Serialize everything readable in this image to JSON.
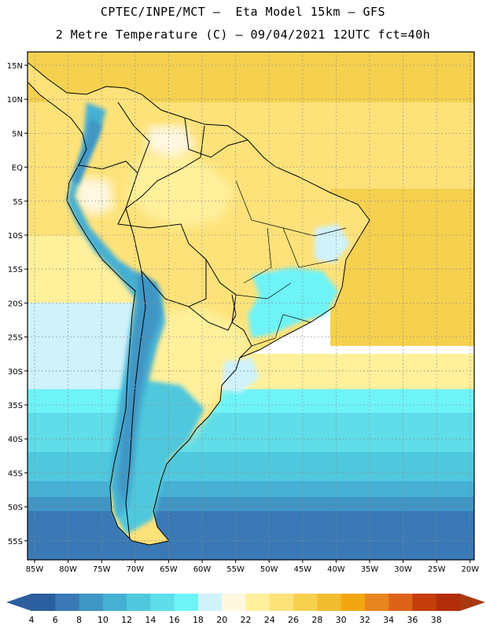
{
  "title_line1": "CPTEC/INPE/MCT –  Eta Model 15km – GFS",
  "title_line2": "2 Metre Temperature (C) – 09/04/2021 12UTC fct=40h",
  "lat_ticks": [
    "15N",
    "10N",
    "5N",
    "EQ",
    "5S",
    "10S",
    "15S",
    "20S",
    "25S",
    "30S",
    "35S",
    "40S",
    "45S",
    "50S",
    "55S"
  ],
  "lon_ticks": [
    "85W",
    "80W",
    "75W",
    "70W",
    "65W",
    "60W",
    "55W",
    "50W",
    "45W",
    "40W",
    "35W",
    "30W",
    "25W",
    "20W"
  ],
  "colorbar": {
    "labels": [
      "4",
      "6",
      "8",
      "10",
      "12",
      "14",
      "16",
      "18",
      "20",
      "22",
      "24",
      "26",
      "28",
      "30",
      "32",
      "34",
      "36",
      "38"
    ],
    "colors": [
      "#2c5f9f",
      "#3a79b6",
      "#3f95c4",
      "#45b0d3",
      "#4fc8dd",
      "#5fdde8",
      "#6ef3f7",
      "#cff2fb",
      "#fff7e0",
      "#fff09b",
      "#fde27a",
      "#f6d14f",
      "#f0bd31",
      "#f2a712",
      "#e88520",
      "#dc6318",
      "#c43e0b",
      "#b22e0a"
    ],
    "left_arrow_color": "#2c5f9f",
    "right_arrow_color": "#a83a12"
  },
  "map_colors": {
    "ocean_tropical": "#f6d14f",
    "ocean_warm": "#fde27a",
    "ocean_mild": "#fff09b",
    "ocean_cool": "#cff2fb",
    "ocean_c16": "#6ef3f7",
    "ocean_c14": "#5fdde8",
    "ocean_c12": "#4fc8dd",
    "ocean_c10": "#45b0d3",
    "ocean_c8": "#3f95c4",
    "ocean_c6": "#3a79b6",
    "land_warm": "#fde27a",
    "land_mild": "#fff09b",
    "land_cool": "#fff7e0",
    "andes_high": "#3f95c4",
    "andes_mid": "#45b0d3",
    "border": "#000000",
    "grid": "#8a8a8a"
  }
}
